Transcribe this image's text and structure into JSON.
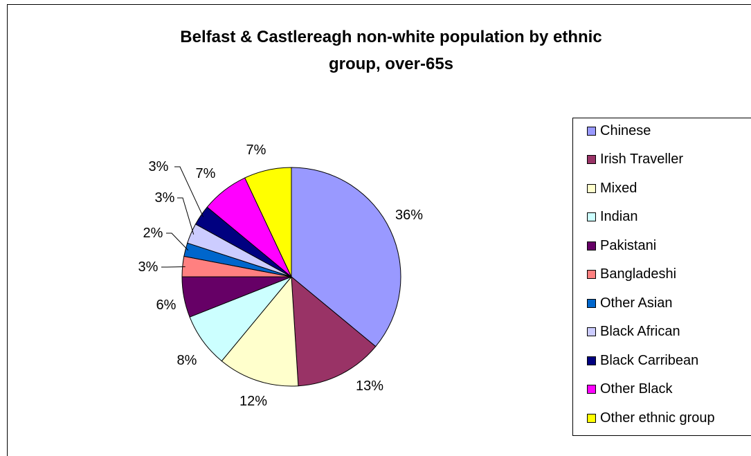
{
  "chart_data": {
    "type": "pie",
    "title_lines": [
      "Belfast & Castlereagh non-white population by ethnic",
      "group, over-65s"
    ],
    "categories": [
      "Chinese",
      "Irish Traveller",
      "Mixed",
      "Indian",
      "Pakistani",
      "Bangladeshi",
      "Other Asian",
      "Black African",
      "Black Carribean",
      "Other Black",
      "Other ethnic group"
    ],
    "values": [
      36,
      13,
      12,
      8,
      6,
      3,
      2,
      3,
      3,
      7,
      7
    ],
    "labels": [
      "36%",
      "13%",
      "12%",
      "8%",
      "6%",
      "3%",
      "2%",
      "3%",
      "3%",
      "7%",
      "7%"
    ],
    "colors": [
      "#9999FF",
      "#993366",
      "#FFFFCC",
      "#CCFFFF",
      "#660066",
      "#FF8080",
      "#0066CC",
      "#CCCCFF",
      "#000080",
      "#FF00FF",
      "#FFFF00"
    ],
    "legend_position": "right"
  }
}
